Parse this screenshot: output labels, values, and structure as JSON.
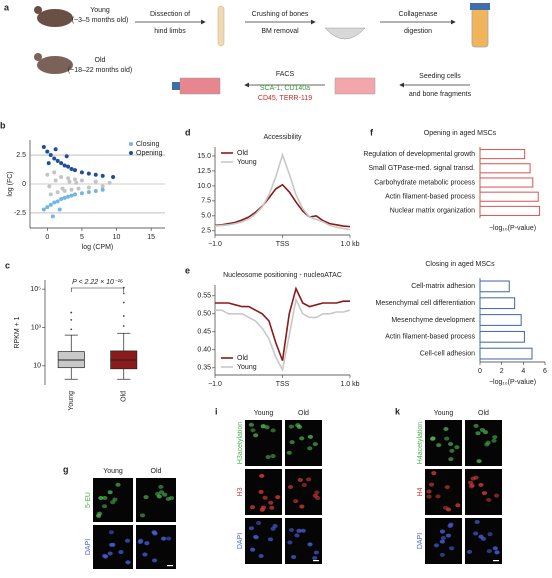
{
  "workflow": {
    "panel": "a",
    "groups": [
      {
        "name": "Young",
        "age": "(~3–5 months old)"
      },
      {
        "name": "Old",
        "age": "(~18–22 months old)"
      }
    ],
    "steps": [
      [
        "Dissection of",
        "hind limbs"
      ],
      [
        "Crushing of bones",
        "BM removal"
      ],
      [
        "Collagenase",
        "digestion"
      ],
      [
        "Seeding cells",
        "and bone fragments"
      ]
    ],
    "facs": {
      "title": "FACS",
      "positive": "SCA-1, CD140a",
      "negative": "CD45, TERR-119"
    }
  },
  "chart_data": [
    {
      "type": "scatter",
      "panel": "b",
      "xlabel": "log (CPM)",
      "ylabel": "log (FC)",
      "xlim": [
        -2.5,
        17
      ],
      "ylim": [
        -3.8,
        3.8
      ],
      "xticks": [
        0,
        5,
        10,
        15
      ],
      "yticks": [
        -2.5,
        0,
        2.5
      ],
      "grid": true,
      "legend": "top-right",
      "series": [
        {
          "color": "#c4c4c4",
          "x": [
            0,
            0.5,
            1,
            1.5,
            2,
            2.5,
            3,
            3.5,
            4,
            4.5,
            5,
            6,
            7,
            8,
            9,
            0.3,
            1.2,
            2.2,
            3.2,
            4.2
          ],
          "y": [
            0.8,
            -0.9,
            1.0,
            -0.7,
            0.6,
            -0.6,
            0.5,
            -0.5,
            0.4,
            -0.4,
            0.3,
            -0.3,
            0.2,
            -0.2,
            0.1,
            -0.2,
            0.3,
            -0.4,
            0.2,
            0.1
          ]
        },
        {
          "name": "Closing",
          "color": "#74b6e3",
          "x": [
            -0.5,
            0,
            0.5,
            1,
            1.5,
            2,
            2.5,
            3,
            3.5,
            4,
            5,
            6,
            7,
            8,
            0.8,
            1.8
          ],
          "y": [
            -2.2,
            -2.0,
            -1.8,
            -1.6,
            -1.5,
            -1.3,
            -1.2,
            -1.1,
            -1.0,
            -0.9,
            -0.8,
            -0.7,
            -0.6,
            -0.5,
            -2.8,
            -2.2
          ]
        },
        {
          "name": "Opening",
          "color": "#1f4e9a",
          "x": [
            -0.5,
            0,
            0.5,
            1,
            1.5,
            2,
            2.5,
            3,
            3.5,
            4,
            5,
            6,
            7,
            8,
            9.5,
            1.2,
            0.2,
            2.8
          ],
          "y": [
            3.2,
            2.8,
            2.5,
            2.2,
            2.0,
            1.8,
            1.6,
            1.5,
            1.3,
            1.2,
            1.0,
            0.9,
            0.8,
            0.7,
            0.6,
            3.0,
            1.8,
            2.4
          ]
        }
      ]
    },
    {
      "type": "box",
      "panel": "c",
      "ylabel": "RPKM + 1",
      "annotation": "P < 2.22 × 10⁻¹⁶",
      "log_scale": true,
      "ylim": [
        1,
        300000
      ],
      "yticks": [
        10,
        {
          "value": 1000,
          "label": "10³"
        },
        {
          "value": 100000,
          "label": "10⁵"
        }
      ],
      "categories": [
        "Young",
        "Old"
      ],
      "colors": [
        "#c8c8c8",
        "#8b1a1a"
      ],
      "boxes": [
        {
          "q1": 8,
          "median": 20,
          "q3": 55,
          "whisker_low": 2,
          "whisker_high": 400,
          "outliers": [
            800,
            2500,
            6000
          ]
        },
        {
          "q1": 7,
          "median": 20,
          "q3": 60,
          "whisker_low": 2,
          "whisker_high": 500,
          "outliers": [
            1200,
            4000,
            20000,
            60000,
            120000
          ]
        }
      ]
    },
    {
      "type": "line",
      "panel": "d",
      "title": "Accessibility",
      "legend": "top-left",
      "x": [
        -1,
        -0.9,
        -0.8,
        -0.7,
        -0.6,
        -0.5,
        -0.4,
        -0.3,
        -0.2,
        -0.1,
        0,
        0.1,
        0.2,
        0.3,
        0.4,
        0.5,
        0.6,
        0.7,
        0.8,
        0.9,
        1
      ],
      "xlim": [
        -1,
        1
      ],
      "xticks": [
        {
          "value": -1,
          "label": "−1.0"
        },
        {
          "value": 0,
          "label": "TSS"
        },
        {
          "value": 1,
          "label": "1.0 kb"
        }
      ],
      "ylim": [
        1.8,
        16.5
      ],
      "yticks": [
        2.5,
        {
          "value": 5,
          "label": "5.0"
        },
        7.5,
        {
          "value": 10,
          "label": "10.0"
        },
        12.5,
        {
          "value": 15,
          "label": "15.0"
        }
      ],
      "series": [
        {
          "name": "Old",
          "color": "#8b1a1a",
          "values": [
            3.4,
            3.5,
            3.7,
            3.9,
            4.3,
            4.8,
            5.6,
            6.6,
            8.0,
            9.5,
            10.2,
            9.0,
            7.3,
            5.8,
            4.8,
            5.0,
            4.2,
            3.7,
            3.5,
            3.3,
            3.2
          ]
        },
        {
          "name": "Young",
          "color": "#c8c8c8",
          "values": [
            3.3,
            3.4,
            3.5,
            3.7,
            4.0,
            4.5,
            5.3,
            6.5,
            8.5,
            11.5,
            15.2,
            12.0,
            8.5,
            6.2,
            4.8,
            4.4,
            4.0,
            3.4,
            3.1,
            2.9,
            2.7
          ]
        }
      ]
    },
    {
      "type": "line",
      "panel": "e",
      "title": "Nucleosome positioning - nucleoATAC",
      "legend": "bottom-left",
      "x": [
        -1,
        -0.9,
        -0.8,
        -0.7,
        -0.6,
        -0.5,
        -0.4,
        -0.3,
        -0.2,
        -0.1,
        0,
        0.1,
        0.2,
        0.3,
        0.4,
        0.5,
        0.6,
        0.7,
        0.8,
        0.9,
        1
      ],
      "xlim": [
        -1,
        1
      ],
      "xticks": [
        {
          "value": -1,
          "label": "−1.0"
        },
        {
          "value": 0,
          "label": "TSS"
        },
        {
          "value": 1,
          "label": "1.0 kb"
        }
      ],
      "ylim": [
        0.33,
        0.58
      ],
      "yticks": [
        0.35,
        {
          "value": 0.4,
          "label": "0.40"
        },
        0.45,
        {
          "value": 0.5,
          "label": "0.50"
        },
        0.55
      ],
      "series": [
        {
          "name": "Old",
          "color": "#8b1a1a",
          "values": [
            0.53,
            0.53,
            0.53,
            0.525,
            0.52,
            0.52,
            0.51,
            0.5,
            0.48,
            0.42,
            0.37,
            0.5,
            0.57,
            0.53,
            0.52,
            0.525,
            0.53,
            0.53,
            0.53,
            0.535,
            0.535
          ]
        },
        {
          "name": "Young",
          "color": "#c8c8c8",
          "values": [
            0.51,
            0.51,
            0.5,
            0.5,
            0.5,
            0.49,
            0.48,
            0.46,
            0.43,
            0.38,
            0.345,
            0.44,
            0.54,
            0.5,
            0.49,
            0.49,
            0.5,
            0.5,
            0.505,
            0.505,
            0.51
          ]
        }
      ]
    },
    {
      "type": "hbar",
      "panel": "f",
      "title": "Opening in aged MSCs",
      "xlabel": "−log₁₀(P-value)",
      "color": "#d9534f",
      "categories": [
        "Regulation of developmental growth",
        "Small GTPase-med. signal transd.",
        "Carbohydrate metabolic process",
        "Actin filament-based process",
        "Nuclear matrix organization"
      ],
      "values": [
        3.3,
        3.7,
        3.9,
        4.3,
        4.4
      ],
      "xlim": [
        0,
        4.8
      ]
    },
    {
      "type": "hbar",
      "title": "Closing in aged MSCs",
      "xlabel": "−log₁₀(P-value)",
      "color": "#3c64a8",
      "categories": [
        "Cell-matrix adhesion",
        "Mesenchymal cell differentiation",
        "Mesenchyme development",
        "Actin filament-based process",
        "Cell-cell adhesion"
      ],
      "values": [
        2.7,
        3.2,
        3.8,
        4.1,
        4.8
      ],
      "xlim": [
        0,
        6
      ],
      "xticks": [
        0,
        2,
        4,
        6
      ]
    }
  ],
  "images": [
    {
      "panel": "g",
      "columns": [
        "Young",
        "Old"
      ],
      "rows": [
        {
          "label": "5-EU",
          "color": "#4caf50"
        },
        {
          "label": "DAPI",
          "color": "#4a5fd8"
        }
      ]
    },
    {
      "panel": "i",
      "columns": [
        "Young",
        "Old"
      ],
      "rows": [
        {
          "label": "H3acetylation",
          "color": "#4caf50"
        },
        {
          "label": "H3",
          "color": "#d23a3a"
        },
        {
          "label": "DAPI",
          "color": "#4a5fd8"
        }
      ]
    },
    {
      "panel": "k",
      "columns": [
        "Young",
        "Old"
      ],
      "rows": [
        {
          "label": "H4acetylation",
          "color": "#4caf50"
        },
        {
          "label": "H4",
          "color": "#d23a3a"
        },
        {
          "label": "DAPI",
          "color": "#4a5fd8"
        }
      ]
    }
  ]
}
